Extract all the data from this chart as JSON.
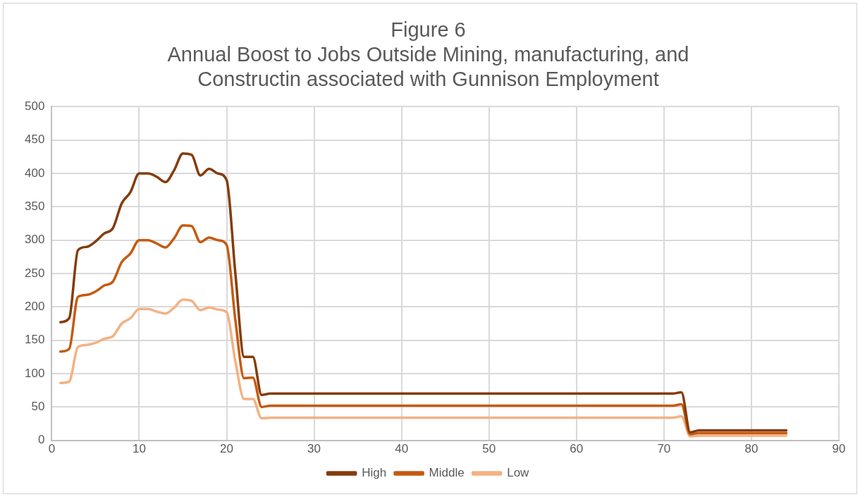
{
  "chart_data": {
    "type": "line",
    "title": "Figure 6\nAnnual Boost to Jobs Outside Mining, manufacturing, and\nConstructin associated with Gunnison Employment",
    "x": [
      1,
      2,
      3,
      4,
      5,
      6,
      7,
      8,
      9,
      10,
      11,
      12,
      13,
      14,
      15,
      16,
      17,
      18,
      19,
      20,
      21,
      22,
      23,
      24,
      25,
      26,
      27,
      28,
      29,
      30,
      31,
      32,
      33,
      34,
      35,
      36,
      37,
      38,
      39,
      40,
      41,
      42,
      43,
      44,
      45,
      46,
      47,
      48,
      49,
      50,
      51,
      52,
      53,
      54,
      55,
      56,
      57,
      58,
      59,
      60,
      61,
      62,
      63,
      64,
      65,
      66,
      67,
      68,
      69,
      70,
      71,
      72,
      73,
      74,
      75,
      76,
      77,
      78,
      79,
      80,
      81,
      82,
      83,
      84
    ],
    "series": [
      {
        "name": "High",
        "color": "#843c0c",
        "values": [
          177,
          183,
          285,
          290,
          298,
          310,
          318,
          355,
          372,
          400,
          400,
          395,
          387,
          405,
          430,
          428,
          397,
          407,
          400,
          390,
          250,
          125,
          125,
          68,
          70,
          70,
          70,
          70,
          70,
          70,
          70,
          70,
          70,
          70,
          70,
          70,
          70,
          70,
          70,
          70,
          70,
          70,
          70,
          70,
          70,
          70,
          70,
          70,
          70,
          70,
          70,
          70,
          70,
          70,
          70,
          70,
          70,
          70,
          70,
          70,
          70,
          70,
          70,
          70,
          70,
          70,
          70,
          70,
          70,
          70,
          70,
          72,
          12,
          15,
          15,
          15,
          15,
          15,
          15,
          15,
          15,
          15,
          15,
          15
        ]
      },
      {
        "name": "Middle",
        "color": "#c55a11",
        "values": [
          133,
          137,
          215,
          218,
          223,
          232,
          238,
          267,
          280,
          300,
          300,
          295,
          289,
          303,
          322,
          321,
          297,
          304,
          300,
          293,
          180,
          93,
          94,
          50,
          52,
          52,
          52,
          52,
          52,
          52,
          52,
          52,
          52,
          52,
          52,
          52,
          52,
          52,
          52,
          52,
          52,
          52,
          52,
          52,
          52,
          52,
          52,
          52,
          52,
          52,
          52,
          52,
          52,
          52,
          52,
          52,
          52,
          52,
          52,
          52,
          52,
          52,
          52,
          52,
          52,
          52,
          52,
          52,
          52,
          52,
          52,
          54,
          9,
          11,
          11,
          11,
          11,
          11,
          11,
          11,
          11,
          11,
          11,
          11
        ]
      },
      {
        "name": "Low",
        "color": "#f4b183",
        "values": [
          86,
          88,
          140,
          143,
          146,
          152,
          156,
          175,
          183,
          197,
          197,
          193,
          190,
          199,
          211,
          209,
          195,
          199,
          196,
          192,
          118,
          62,
          62,
          33,
          34,
          34,
          34,
          34,
          34,
          34,
          34,
          34,
          34,
          34,
          34,
          34,
          34,
          34,
          34,
          34,
          34,
          34,
          34,
          34,
          34,
          34,
          34,
          34,
          34,
          34,
          34,
          34,
          34,
          34,
          34,
          34,
          34,
          34,
          34,
          34,
          34,
          34,
          34,
          34,
          34,
          34,
          34,
          34,
          34,
          34,
          34,
          36,
          6,
          7,
          7,
          7,
          7,
          7,
          7,
          7,
          7,
          7,
          7,
          7
        ]
      }
    ],
    "xlim": [
      0,
      90
    ],
    "xticks": [
      0,
      10,
      20,
      30,
      40,
      50,
      60,
      70,
      80,
      90
    ],
    "ylim": [
      0,
      500
    ],
    "yticks": [
      0,
      50,
      100,
      150,
      200,
      250,
      300,
      350,
      400,
      450,
      500
    ],
    "grid": true,
    "legend": "bottom",
    "marker": "none",
    "line_style": "solid"
  }
}
